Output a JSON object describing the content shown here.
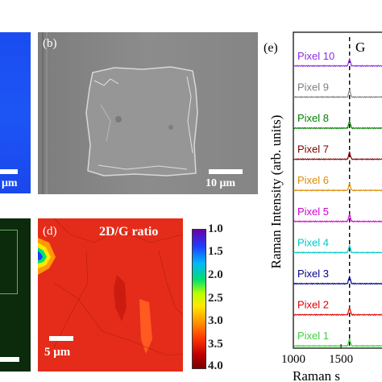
{
  "panel_a": {
    "scale_text": "μm"
  },
  "panel_b": {
    "label": "(b)",
    "scale_text": "10 μm"
  },
  "panel_d": {
    "label": "(d)",
    "title": "2D/G ratio",
    "scale_text": "5 μm"
  },
  "colorbar": {
    "ticks": [
      "1.0",
      "1.5",
      "2.0",
      "2.5",
      "3.0",
      "3.5",
      "4.0"
    ]
  },
  "colors": {
    "colorbar_stops": [
      "#6a00a8",
      "#1f3cff",
      "#00b7ff",
      "#00e070",
      "#b8ff00",
      "#ffe800",
      "#ff9a00",
      "#ff3a00",
      "#c00000",
      "#7a0000"
    ],
    "map_background": "#e52c1a"
  },
  "chart_data": {
    "type": "line",
    "panel_label": "(e)",
    "peak_label": "G",
    "ylabel": "Raman Intensity (arb. units)",
    "xlabel": "Raman s",
    "xlim": [
      1000,
      2100
    ],
    "x_ticks": [
      "1000",
      "1500",
      "20"
    ],
    "dashed_line_x": 1590,
    "series": [
      {
        "name": "Pixel 10",
        "color": "#8a2be2"
      },
      {
        "name": "Pixel 9",
        "color": "#808080"
      },
      {
        "name": "Pixel 8",
        "color": "#008000"
      },
      {
        "name": "Pixel 7",
        "color": "#800000"
      },
      {
        "name": "Pixel 6",
        "color": "#e08a00"
      },
      {
        "name": "Pixel 5",
        "color": "#d000d0"
      },
      {
        "name": "Pixel 4",
        "color": "#00c8c8"
      },
      {
        "name": "Pixel 3",
        "color": "#000090"
      },
      {
        "name": "Pixel 2",
        "color": "#e00000"
      },
      {
        "name": "Pixel 1",
        "color": "#40d040"
      }
    ]
  }
}
